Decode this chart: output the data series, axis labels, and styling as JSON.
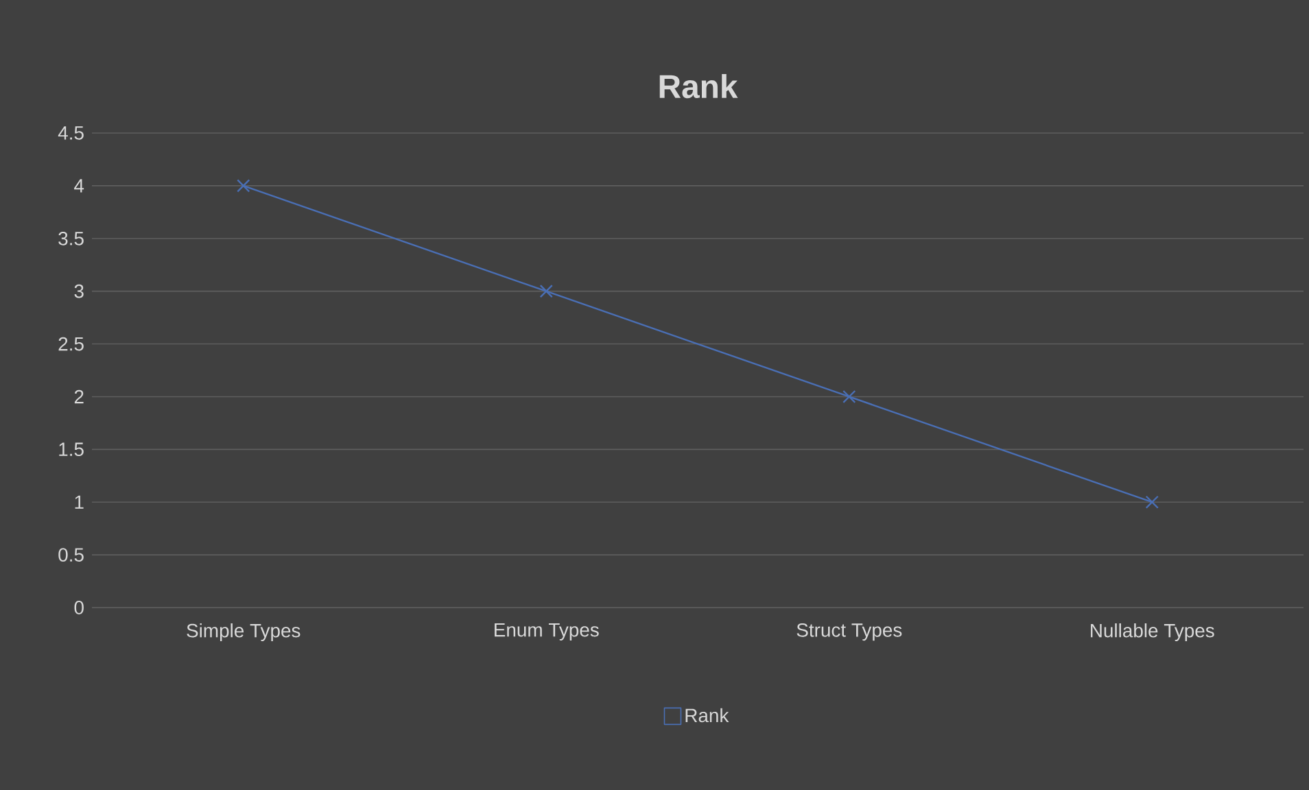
{
  "chart_data": {
    "type": "line",
    "title": "Rank",
    "categories": [
      "Simple Types",
      "Enum Types",
      "Struct Types",
      "Nullable Types"
    ],
    "series": [
      {
        "name": "Rank",
        "color": "#4a6fb5",
        "values": [
          4,
          3,
          2,
          1
        ]
      }
    ],
    "ylim": [
      0,
      4.5
    ],
    "yticks": [
      0,
      0.5,
      1,
      1.5,
      2,
      2.5,
      3,
      3.5,
      4,
      4.5
    ],
    "grid": "y",
    "legend": "bottom",
    "marker": "cross",
    "line_style": "solid"
  }
}
